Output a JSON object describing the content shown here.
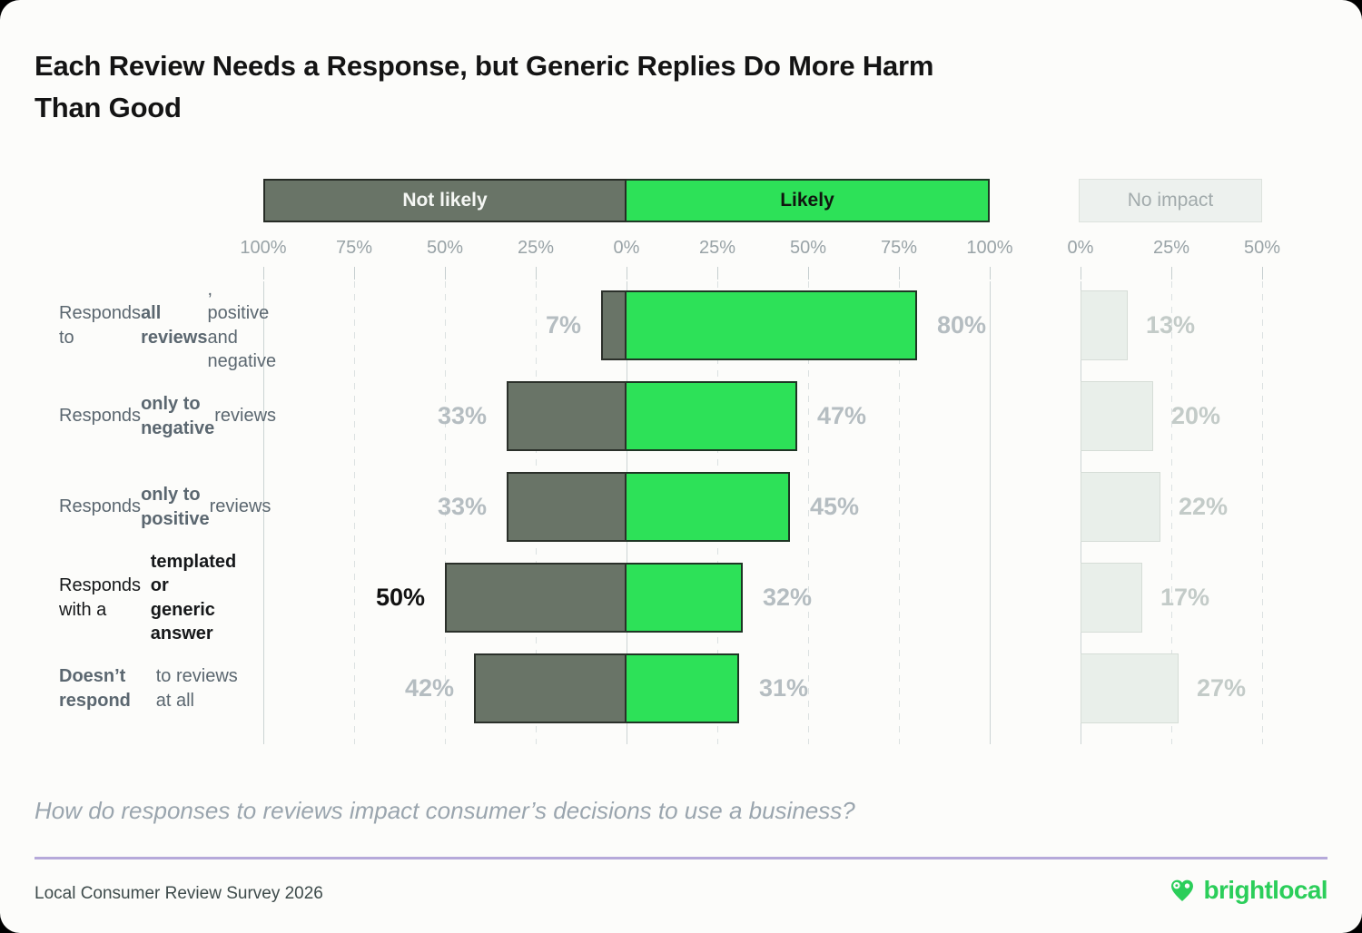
{
  "header": {
    "title_line1": "Each Review Needs a Response, but Generic Replies Do More Harm",
    "title_line2": "Than Good"
  },
  "legend": {
    "not_likely": "Not likely",
    "likely": "Likely",
    "no_impact": "No impact"
  },
  "colors": {
    "not_likely_fill": "#697467",
    "likely_fill": "#2DE158",
    "no_impact_fill": "#E9EFEA",
    "divider_accent": "#B6A9DA",
    "logo_green": "#2BCE5A"
  },
  "axis": {
    "main_ticks": [
      "100%",
      "75%",
      "50%",
      "25%",
      "0%",
      "25%",
      "50%",
      "75%",
      "100%"
    ],
    "no_impact_ticks": [
      "0%",
      "25%",
      "50%"
    ]
  },
  "chart_data": {
    "type": "bar",
    "orientation": "horizontal",
    "title": "Each Review Needs a Response, but Generic Replies Do More Harm Than Good",
    "unit": "percent",
    "categories": [
      "Responds to all reviews, positive and negative",
      "Responds only to negative reviews",
      "Responds only to positive reviews",
      "Responds with a templated or generic answer",
      "Doesn't respond to reviews at all"
    ],
    "series": [
      {
        "name": "Not likely",
        "values": [
          7,
          33,
          33,
          50,
          42
        ]
      },
      {
        "name": "Likely",
        "values": [
          80,
          47,
          45,
          32,
          31
        ]
      },
      {
        "name": "No impact",
        "values": [
          13,
          20,
          22,
          17,
          27
        ]
      }
    ],
    "x_range_main": [
      -100,
      100
    ],
    "x_range_no_impact": [
      0,
      50
    ],
    "grid": "dashed-vertical",
    "legend_position": "top",
    "highlighted_row_index": 3
  },
  "rows": [
    {
      "segments": [
        {
          "t": "Responds to ",
          "b": 0
        },
        {
          "t": "all\nreviews",
          "b": 1
        },
        {
          "t": ", positive\nand negative",
          "b": 0
        }
      ],
      "highlight": false
    },
    {
      "segments": [
        {
          "t": "Responds ",
          "b": 0
        },
        {
          "t": "only to\nnegative",
          "b": 1
        },
        {
          "t": " reviews",
          "b": 0
        }
      ],
      "highlight": false
    },
    {
      "segments": [
        {
          "t": "Responds ",
          "b": 0
        },
        {
          "t": "only to\npositive",
          "b": 1
        },
        {
          "t": " reviews",
          "b": 0
        }
      ],
      "highlight": false
    },
    {
      "segments": [
        {
          "t": "Responds with a\n",
          "b": 0
        },
        {
          "t": "templated or\ngeneric answer",
          "b": 1
        }
      ],
      "highlight": true
    },
    {
      "segments": [
        {
          "t": "Doesn’t respond\n",
          "b": 1
        },
        {
          "t": "to reviews at all",
          "b": 0
        }
      ],
      "highlight": false
    }
  ],
  "footer": {
    "question": "How do responses to reviews impact consumer’s decisions to use a business?",
    "source": "Local Consumer Review Survey 2026",
    "brand": "brightlocal"
  }
}
